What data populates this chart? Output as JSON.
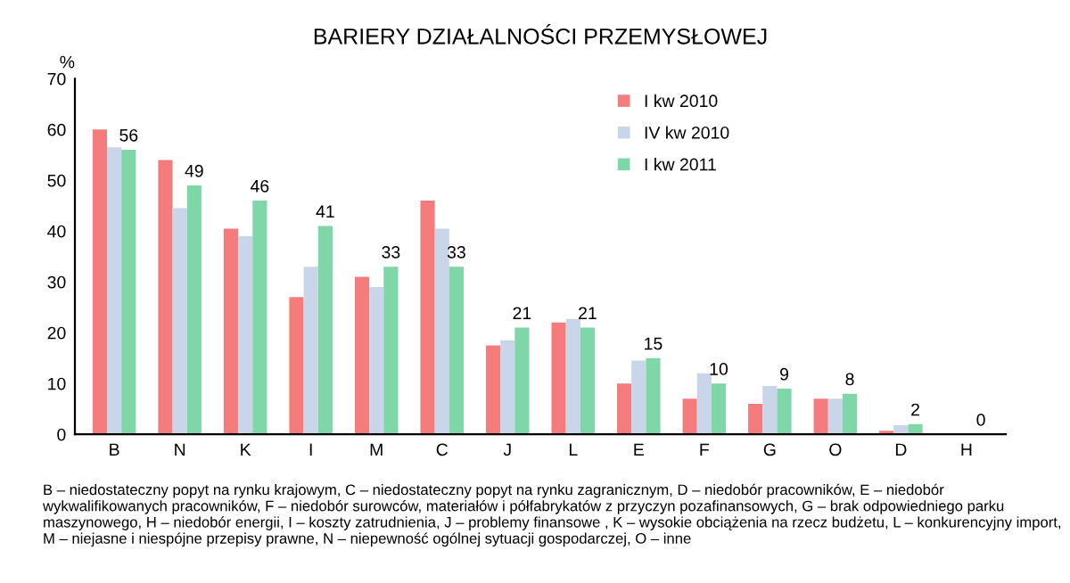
{
  "chart_data": {
    "type": "bar",
    "title": "BARIERY DZIAŁALNOŚCI PRZEMYSŁOWEJ",
    "ylabel": "%",
    "categories": [
      "B",
      "N",
      "K",
      "I",
      "M",
      "C",
      "J",
      "L",
      "E",
      "F",
      "G",
      "O",
      "D",
      "H"
    ],
    "series": [
      {
        "name": "I kw 2010",
        "color": "#f47c7c",
        "values": [
          60,
          54,
          40.5,
          27,
          31,
          46,
          17.5,
          22,
          10,
          7,
          6,
          7,
          0.7,
          null
        ]
      },
      {
        "name": "IV kw 2010",
        "color": "#c9d5e8",
        "values": [
          56.5,
          44.5,
          39,
          33,
          29,
          40.5,
          18.5,
          22.7,
          14.5,
          12,
          9.5,
          7,
          1.8,
          null
        ]
      },
      {
        "name": "I kw 2011",
        "color": "#7fd6a6",
        "values": [
          56,
          49,
          46,
          41,
          33,
          33,
          21,
          21,
          15,
          10,
          9,
          8,
          2,
          0
        ],
        "value_labels": [
          "56",
          "49",
          "46",
          "41",
          "33",
          "33",
          "21",
          "21",
          "15",
          "10",
          "9",
          "8",
          "2",
          "0"
        ]
      }
    ],
    "ylim": [
      0,
      70
    ],
    "yticks": [
      0,
      10,
      20,
      30,
      40,
      50,
      60,
      70
    ],
    "grid": false,
    "legend": "top right",
    "annotations": [
      "B – niedostateczny popyt na rynku krajowym, C – niedostateczny popyt na rynku zagranicznym, D – niedobór pracowników, E – niedobór wykwalifikowanych pracowników, F – niedobór surowców, materiałów i półfabrykatów z przyczyn pozafinansowych, G – brak odpowiedniego parku maszynowego, H – niedobór energii, I – koszty zatrudnienia, J – problemy finansowe , K – wysokie obciążenia na rzecz budżetu, L – konkurencyjny import, M – niejasne i niespójne przepisy prawne, N – niepewność ogólnej sytuacji gospodarczej, O – inne"
    ]
  }
}
